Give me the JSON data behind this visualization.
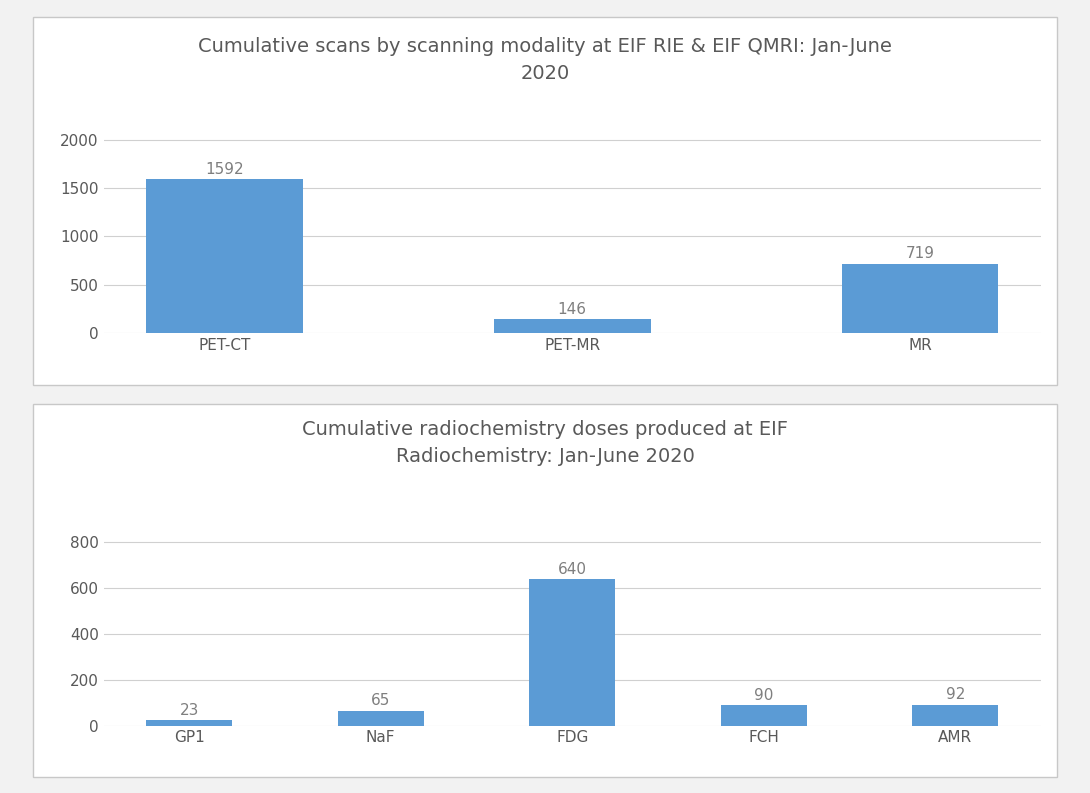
{
  "chart1": {
    "title": "Cumulative scans by scanning modality at EIF RIE & EIF QMRI: Jan-June\n2020",
    "categories": [
      "PET-CT",
      "PET-MR",
      "MR"
    ],
    "values": [
      1592,
      146,
      719
    ],
    "bar_color": "#5b9bd5",
    "yticks": [
      0,
      500,
      1000,
      1500,
      2000
    ],
    "ylim": [
      0,
      2200
    ],
    "title_color": "#595959"
  },
  "chart2": {
    "title": "Cumulative radiochemistry doses produced at EIF\nRadiochemistry: Jan-June 2020",
    "categories": [
      "GP1",
      "NaF",
      "FDG",
      "FCH",
      "AMR"
    ],
    "values": [
      23,
      65,
      640,
      90,
      92
    ],
    "bar_color": "#5b9bd5",
    "yticks": [
      0,
      200,
      400,
      600,
      800
    ],
    "ylim": [
      0,
      900
    ],
    "title_color": "#595959"
  },
  "background_color": "#f2f2f2",
  "panel_bg": "#ffffff",
  "border_color": "#c8c8c8",
  "grid_color": "#d0d0d0",
  "tick_label_color": "#595959",
  "value_label_color": "#7f7f7f",
  "title_fontsize": 14,
  "tick_fontsize": 11,
  "value_fontsize": 11
}
